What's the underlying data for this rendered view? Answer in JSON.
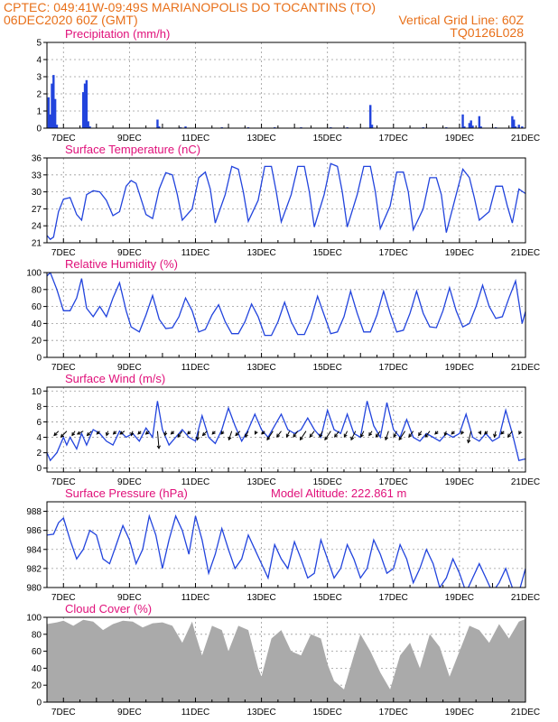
{
  "header": {
    "line1_left": "CPTEC:   049:41W-09:49S   MARIANOPOLIS DO TOCANTINS (TO)",
    "line2_left": "06DEC2020 60Z (GMT)",
    "line2_right": "Vertical Grid Line: 60Z",
    "line3_right": "TQ0126L028"
  },
  "colors": {
    "header": "#e8701a",
    "title": "#e0107a",
    "series": "#2244dd",
    "cloud": "#aaaaaa"
  },
  "x_axis": {
    "start_day": 6.5,
    "end_day": 21,
    "tick_days": [
      7,
      9,
      11,
      13,
      15,
      17,
      19,
      21
    ],
    "tick_labels": [
      "7DEC",
      "9DEC",
      "11DEC",
      "13DEC",
      "15DEC",
      "17DEC",
      "19DEC",
      "21DEC"
    ]
  },
  "chart_data": [
    {
      "id": "precip",
      "type": "bar",
      "title": "Precipitation (mm/h)",
      "ylim": [
        0,
        5
      ],
      "yticks": [
        0,
        1,
        2,
        3,
        4,
        5
      ],
      "ytick_labels": [
        "0",
        "1",
        "2",
        "3",
        "4",
        "5"
      ],
      "x": [
        6.55,
        6.6,
        6.65,
        6.7,
        6.75,
        6.8,
        7.6,
        7.65,
        7.7,
        7.75,
        7.8,
        9.85,
        9.9,
        10.55,
        10.7,
        11.8,
        12.6,
        13.4,
        14.2,
        15.1,
        15.6,
        16.3,
        16.35,
        17.9,
        18.6,
        19.1,
        19.15,
        19.3,
        19.35,
        19.4,
        19.6,
        19.65,
        20.1,
        20.6,
        20.65,
        20.7,
        20.8,
        20.9
      ],
      "values": [
        1.8,
        0.8,
        2.6,
        3.1,
        1.7,
        0.2,
        2.1,
        2.6,
        2.8,
        0.4,
        0.1,
        0.5,
        0.1,
        0.05,
        0.1,
        0.05,
        0.05,
        0.05,
        0.05,
        0.05,
        0.05,
        1.35,
        0.2,
        0.05,
        0.05,
        0.8,
        0.1,
        0.3,
        0.45,
        0.15,
        0.7,
        0.1,
        0.05,
        0.7,
        0.5,
        0.1,
        0.2,
        0.1
      ]
    },
    {
      "id": "temp",
      "type": "line",
      "title": "Surface Temperature (nC)",
      "ylim": [
        21,
        36
      ],
      "yticks": [
        21,
        24,
        27,
        30,
        33,
        36
      ],
      "ytick_labels": [
        "21",
        "24",
        "27",
        "30",
        "33",
        "36"
      ],
      "x": [
        6.5,
        6.6,
        6.7,
        6.85,
        7.0,
        7.2,
        7.4,
        7.55,
        7.7,
        7.9,
        8.1,
        8.3,
        8.5,
        8.7,
        8.9,
        9.05,
        9.2,
        9.5,
        9.7,
        9.9,
        10.1,
        10.3,
        10.45,
        10.6,
        10.9,
        11.1,
        11.3,
        11.45,
        11.6,
        11.9,
        12.1,
        12.3,
        12.45,
        12.6,
        12.9,
        13.1,
        13.3,
        13.45,
        13.6,
        13.9,
        14.1,
        14.3,
        14.45,
        14.6,
        14.9,
        15.1,
        15.3,
        15.45,
        15.6,
        15.9,
        16.1,
        16.3,
        16.45,
        16.6,
        16.9,
        17.1,
        17.3,
        17.45,
        17.6,
        17.9,
        18.1,
        18.3,
        18.45,
        18.6,
        18.9,
        19.1,
        19.3,
        19.45,
        19.6,
        19.9,
        20.1,
        20.3,
        20.45,
        20.6,
        20.8,
        21.0
      ],
      "values": [
        22.3,
        21.6,
        22.0,
        26.5,
        28.7,
        29.0,
        26.0,
        25.0,
        29.5,
        30.2,
        30.0,
        28.5,
        25.8,
        26.5,
        31.0,
        32.0,
        31.5,
        26.0,
        25.3,
        30.5,
        33.4,
        33.0,
        29.5,
        25.0,
        27.0,
        32.5,
        33.5,
        30.5,
        24.5,
        29.5,
        34.5,
        34.0,
        30.0,
        24.8,
        28.5,
        34.5,
        34.5,
        30.0,
        24.7,
        29.5,
        34.5,
        34.5,
        30.0,
        23.8,
        29.5,
        35.0,
        34.5,
        30.0,
        23.8,
        29.5,
        34.5,
        34.5,
        30.0,
        23.5,
        27.5,
        33.5,
        33.5,
        30.0,
        23.3,
        27.0,
        32.5,
        32.5,
        29.5,
        22.8,
        29.5,
        34.0,
        32.5,
        29.0,
        25.0,
        26.5,
        31.0,
        31.0,
        27.5,
        24.5,
        30.5,
        29.7
      ]
    },
    {
      "id": "rh",
      "type": "line",
      "title": "Relative Humidity (%)",
      "ylim": [
        0,
        100
      ],
      "yticks": [
        0,
        20,
        40,
        60,
        80,
        100
      ],
      "ytick_labels": [
        "0",
        "20",
        "40",
        "60",
        "80",
        "100"
      ],
      "x": [
        6.5,
        6.6,
        6.8,
        7.0,
        7.2,
        7.4,
        7.55,
        7.7,
        7.9,
        8.1,
        8.3,
        8.5,
        8.7,
        8.9,
        9.05,
        9.3,
        9.5,
        9.7,
        9.9,
        10.1,
        10.3,
        10.5,
        10.7,
        10.9,
        11.1,
        11.3,
        11.5,
        11.7,
        11.9,
        12.1,
        12.3,
        12.5,
        12.7,
        12.9,
        13.1,
        13.3,
        13.5,
        13.7,
        13.9,
        14.1,
        14.3,
        14.5,
        14.7,
        14.9,
        15.1,
        15.3,
        15.5,
        15.7,
        15.9,
        16.1,
        16.3,
        16.5,
        16.7,
        16.9,
        17.1,
        17.3,
        17.5,
        17.7,
        17.9,
        18.1,
        18.3,
        18.5,
        18.7,
        18.9,
        19.1,
        19.3,
        19.5,
        19.7,
        19.9,
        20.1,
        20.3,
        20.5,
        20.7,
        20.9,
        21.0
      ],
      "values": [
        96,
        100,
        80,
        55,
        55,
        70,
        93,
        58,
        48,
        60,
        48,
        70,
        88,
        55,
        36,
        30,
        50,
        73,
        45,
        34,
        35,
        48,
        70,
        55,
        30,
        33,
        50,
        62,
        42,
        28,
        28,
        42,
        63,
        48,
        26,
        26,
        42,
        65,
        42,
        27,
        27,
        45,
        72,
        50,
        28,
        30,
        48,
        78,
        52,
        30,
        30,
        50,
        78,
        52,
        30,
        32,
        52,
        78,
        52,
        36,
        35,
        55,
        82,
        55,
        36,
        40,
        60,
        85,
        60,
        46,
        48,
        70,
        90,
        40,
        54
      ]
    },
    {
      "id": "wind",
      "type": "line",
      "title": "Surface Wind (m/s)",
      "ylim": [
        -0.5,
        10.5
      ],
      "yticks": [
        0,
        2,
        4,
        6,
        8,
        10
      ],
      "ytick_labels": [
        "0",
        "2",
        "4",
        "6",
        "8",
        "10"
      ],
      "x": [
        6.5,
        6.6,
        6.8,
        7.0,
        7.1,
        7.2,
        7.4,
        7.55,
        7.7,
        7.9,
        8.1,
        8.3,
        8.5,
        8.7,
        8.9,
        9.1,
        9.3,
        9.5,
        9.7,
        9.85,
        10.0,
        10.2,
        10.4,
        10.6,
        10.8,
        11.0,
        11.2,
        11.4,
        11.6,
        11.8,
        12.0,
        12.2,
        12.4,
        12.6,
        12.8,
        13.0,
        13.2,
        13.4,
        13.6,
        13.8,
        14.0,
        14.2,
        14.4,
        14.6,
        14.8,
        15.0,
        15.2,
        15.4,
        15.6,
        15.8,
        16.0,
        16.2,
        16.4,
        16.6,
        16.8,
        17.0,
        17.2,
        17.4,
        17.6,
        17.8,
        18.0,
        18.2,
        18.4,
        18.6,
        18.8,
        19.0,
        19.2,
        19.4,
        19.6,
        19.8,
        20.0,
        20.2,
        20.4,
        20.6,
        20.8,
        21.0
      ],
      "values": [
        2.0,
        1.0,
        2.0,
        4.0,
        3.0,
        4.0,
        2.5,
        4.5,
        3.0,
        5.0,
        4.5,
        3.5,
        3.0,
        4.8,
        4.0,
        4.5,
        3.5,
        5.2,
        4.0,
        8.7,
        5.0,
        3.0,
        4.0,
        5.0,
        4.0,
        3.5,
        6.8,
        4.0,
        3.2,
        5.0,
        7.8,
        5.5,
        3.5,
        5.0,
        7.0,
        5.0,
        4.0,
        5.5,
        7.0,
        5.0,
        4.5,
        5.0,
        6.5,
        5.0,
        4.0,
        7.5,
        5.0,
        4.5,
        7.0,
        4.5,
        4.0,
        8.7,
        5.5,
        4.0,
        8.5,
        5.0,
        4.0,
        6.3,
        4.0,
        3.5,
        4.5,
        4.0,
        3.5,
        4.5,
        4.0,
        4.5,
        7.0,
        4.0,
        3.5,
        4.5,
        3.5,
        4.0,
        7.5,
        4.5,
        1.0,
        1.2
      ]
    },
    {
      "id": "pres",
      "type": "line",
      "title": "Surface Pressure (hPa)",
      "subtitle": "Model Altitude: 222.861 m",
      "ylim": [
        980,
        989
      ],
      "yticks": [
        980,
        982,
        984,
        986,
        988
      ],
      "ytick_labels": [
        "980",
        "982",
        "984",
        "986",
        "988"
      ],
      "x": [
        6.5,
        6.7,
        6.85,
        7.0,
        7.2,
        7.4,
        7.6,
        7.8,
        8.0,
        8.2,
        8.4,
        8.6,
        8.8,
        9.0,
        9.2,
        9.4,
        9.6,
        9.8,
        10.0,
        10.2,
        10.4,
        10.6,
        10.8,
        11.0,
        11.2,
        11.4,
        11.6,
        11.8,
        12.0,
        12.2,
        12.4,
        12.6,
        12.8,
        13.0,
        13.2,
        13.4,
        13.6,
        13.8,
        14.0,
        14.2,
        14.4,
        14.6,
        14.8,
        15.0,
        15.2,
        15.4,
        15.6,
        15.8,
        16.0,
        16.2,
        16.4,
        16.6,
        16.8,
        17.0,
        17.2,
        17.4,
        17.6,
        17.8,
        18.0,
        18.2,
        18.4,
        18.6,
        18.8,
        19.0,
        19.2,
        19.4,
        19.6,
        19.8,
        20.0,
        20.2,
        20.4,
        20.6,
        20.8,
        21.0
      ],
      "values": [
        985.5,
        985.6,
        986.8,
        987.3,
        985.0,
        983.0,
        984.0,
        986.0,
        985.5,
        983.0,
        982.5,
        984.5,
        986.5,
        985.0,
        982.5,
        984.0,
        987.5,
        985.5,
        982.0,
        985.0,
        987.5,
        986.0,
        983.5,
        987.5,
        985.0,
        981.5,
        983.5,
        986.2,
        984.0,
        982.0,
        983.0,
        985.5,
        984.0,
        982.5,
        981.0,
        984.5,
        983.0,
        982.0,
        984.8,
        983.0,
        981.0,
        981.5,
        985.0,
        983.0,
        981.0,
        982.0,
        984.5,
        983.0,
        981.0,
        982.0,
        985.0,
        983.5,
        981.5,
        982.0,
        984.5,
        983.0,
        980.5,
        982.0,
        984.0,
        982.5,
        980.0,
        981.0,
        983.0,
        981.5,
        979.5,
        981.0,
        982.5,
        981.0,
        979.5,
        980.5,
        982.0,
        980.0,
        979.5,
        982.0
      ]
    },
    {
      "id": "cloud",
      "type": "area",
      "title": "Cloud Cover (%)",
      "ylim": [
        0,
        100
      ],
      "yticks": [
        0,
        20,
        40,
        60,
        80,
        100
      ],
      "ytick_labels": [
        "0",
        "20",
        "40",
        "60",
        "80",
        "100"
      ],
      "x": [
        6.5,
        6.8,
        7.0,
        7.3,
        7.6,
        7.9,
        8.2,
        8.5,
        8.8,
        9.1,
        9.4,
        9.7,
        10.0,
        10.3,
        10.6,
        10.9,
        11.0,
        11.2,
        11.5,
        11.8,
        12.0,
        12.3,
        12.6,
        12.9,
        13.0,
        13.3,
        13.6,
        13.9,
        14.2,
        14.5,
        14.8,
        15.0,
        15.2,
        15.5,
        15.8,
        16.0,
        16.3,
        16.6,
        16.9,
        17.2,
        17.5,
        17.8,
        18.1,
        18.4,
        18.7,
        19.0,
        19.3,
        19.6,
        19.9,
        20.2,
        20.5,
        20.8,
        21.0
      ],
      "values": [
        92,
        94,
        96,
        90,
        97,
        95,
        85,
        92,
        96,
        95,
        88,
        93,
        94,
        90,
        70,
        95,
        80,
        55,
        90,
        85,
        60,
        90,
        85,
        40,
        30,
        75,
        85,
        60,
        55,
        80,
        75,
        45,
        25,
        15,
        55,
        80,
        60,
        35,
        15,
        55,
        70,
        40,
        80,
        65,
        30,
        60,
        90,
        85,
        70,
        92,
        75,
        95,
        98
      ]
    }
  ],
  "wind_barbs": {
    "x": [
      6.85,
      7.1,
      7.35,
      7.6,
      7.85,
      8.1,
      8.35,
      8.6,
      8.85,
      9.1,
      9.35,
      9.6,
      9.85,
      10.1,
      10.35,
      10.6,
      10.85,
      11.1,
      11.35,
      11.6,
      11.85,
      12.1,
      12.35,
      12.6,
      12.85,
      13.1,
      13.35,
      13.6,
      13.85,
      14.1,
      14.35,
      14.6,
      14.85,
      15.1,
      15.35,
      15.6,
      15.85,
      16.1,
      16.35,
      16.6,
      16.85,
      17.1,
      17.35,
      17.6,
      17.85,
      18.1,
      18.35,
      18.6,
      18.85,
      19.1,
      19.35,
      19.6,
      19.85,
      20.1,
      20.35,
      20.6,
      20.85
    ],
    "u": [
      -1.5,
      -2,
      -1,
      -2,
      -1.5,
      -1,
      -0.5,
      -1,
      -1.5,
      -0.5,
      -1,
      -1.2,
      0.5,
      -0.3,
      -1,
      -1.5,
      -1,
      -0.5,
      -1.5,
      -1,
      -0.8,
      -1,
      -1.5,
      -1,
      -0.5,
      -1,
      -2,
      -1.5,
      -1,
      -1.5,
      -2,
      -1.5,
      -1,
      -2,
      -1.5,
      -1,
      -1.5,
      -1,
      -1,
      -1.5,
      -1,
      -1,
      -2,
      -1.5,
      -1,
      -1.5,
      -1,
      -0.5,
      -1,
      -0.5,
      -1,
      0.5,
      -1,
      -0.5,
      -1,
      -1.5,
      -0.5
    ],
    "v": [
      -1.5,
      -2,
      -1.5,
      -1,
      -1.5,
      -1,
      -1.5,
      -1,
      -1,
      -1.5,
      -1,
      -1,
      -6,
      -1.5,
      -1,
      -2,
      -1,
      -3,
      -1.5,
      -1,
      -1,
      -3,
      -1.5,
      -2,
      -1,
      -1,
      -3,
      -2,
      -2,
      -2,
      -3,
      -2,
      -2,
      -3,
      -2,
      -2,
      -3,
      -2,
      -1.5,
      -2,
      -3,
      -2,
      -3,
      -2,
      -1.5,
      -2,
      -1,
      -1.5,
      -1,
      -1,
      -4,
      -1,
      -1,
      -2,
      -1,
      -2,
      -1
    ]
  }
}
